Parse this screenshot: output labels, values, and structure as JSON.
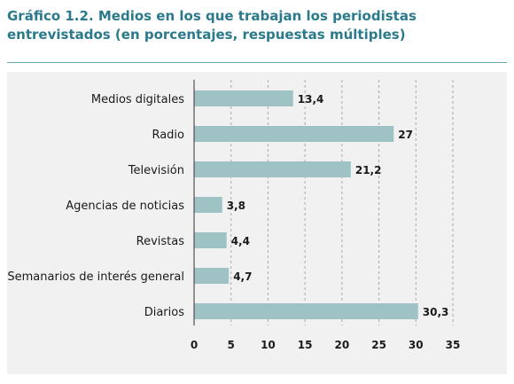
{
  "title": "Gráfico 1.2. Medios en los que trabajan los periodistas entrevistados (en porcentajes, respuestas múltiples)",
  "colors": {
    "bar": "#9fc3c5",
    "title": "#2b7a8c",
    "background": "#f1f1f1",
    "grid": "#a8a8a8"
  },
  "chart_data": {
    "type": "bar",
    "orientation": "horizontal",
    "title": "Gráfico 1.2. Medios en los que trabajan los periodistas entrevistados (en porcentajes, respuestas múltiples)",
    "categories": [
      "Medios digitales",
      "Radio",
      "Televisión",
      "Agencias de noticias",
      "Revistas",
      "Semanarios de interés general",
      "Diarios"
    ],
    "values": [
      13.4,
      27,
      21.2,
      3.8,
      4.4,
      4.7,
      30.3
    ],
    "value_labels": [
      "13,4",
      "27",
      "21,2",
      "3,8",
      "4,4",
      "4,7",
      "30,3"
    ],
    "xticks": [
      "0",
      "5",
      "10",
      "15",
      "20",
      "25",
      "30",
      "35"
    ],
    "xlim": [
      0,
      35
    ],
    "xlabel": "",
    "ylabel": "",
    "grid": "vertical dashed",
    "legend": "none"
  }
}
